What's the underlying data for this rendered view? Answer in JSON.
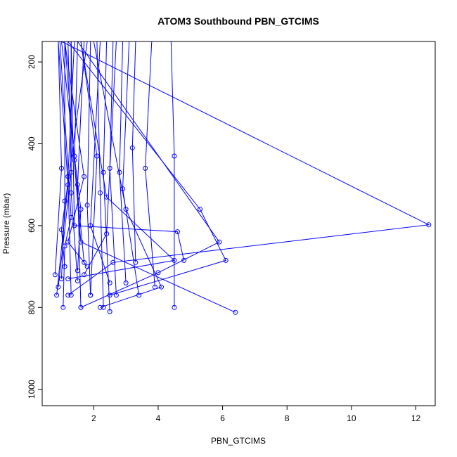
{
  "chart_data": {
    "type": "line",
    "title": "ATOM3 Southbound PBN_GTCIMS",
    "xlabel": "PBN_GTCIMS",
    "ylabel": "Pressure (mbar)",
    "xlim": [
      0.4,
      12.6
    ],
    "ylim": [
      1040,
      150
    ],
    "y_reversed": true,
    "x_ticks": [
      2,
      4,
      6,
      8,
      10,
      12
    ],
    "y_ticks": [
      200,
      400,
      600,
      800,
      1000
    ],
    "series_color": "#0000ff",
    "marker": "open-circle",
    "series": [
      {
        "x": [
          1.0,
          1.4,
          1.6,
          1.5
        ],
        "y": [
          150,
          430,
          560,
          710
        ]
      },
      {
        "x": [
          0.9,
          1.0,
          0.8
        ],
        "y": [
          150,
          460,
          720
        ]
      },
      {
        "x": [
          1.2,
          1.3,
          0.9
        ],
        "y": [
          150,
          470,
          750
        ]
      },
      {
        "x": [
          1.1,
          1.1,
          1.0
        ],
        "y": [
          150,
          540,
          730
        ]
      },
      {
        "x": [
          1.4,
          1.2,
          1.3
        ],
        "y": [
          150,
          480,
          770
        ]
      },
      {
        "x": [
          1.7,
          1.5,
          1.6
        ],
        "y": [
          150,
          500,
          800
        ]
      },
      {
        "x": [
          1.9,
          1.8,
          1.9
        ],
        "y": [
          150,
          550,
          770
        ]
      },
      {
        "x": [
          2.1,
          2.2,
          2.3
        ],
        "y": [
          150,
          520,
          800
        ]
      },
      {
        "x": [
          2.4,
          2.3,
          2.5
        ],
        "y": [
          150,
          470,
          810
        ]
      },
      {
        "x": [
          2.6,
          2.5,
          2.7
        ],
        "y": [
          150,
          460,
          770
        ]
      },
      {
        "x": [
          2.9,
          2.8,
          3.0
        ],
        "y": [
          150,
          470,
          740
        ]
      },
      {
        "x": [
          3.3,
          3.2,
          3.3
        ],
        "y": [
          150,
          410,
          690
        ]
      },
      {
        "x": [
          3.8,
          3.6,
          3.9
        ],
        "y": [
          150,
          460,
          750
        ]
      },
      {
        "x": [
          4.4,
          4.5,
          4.5
        ],
        "y": [
          150,
          430,
          800
        ]
      },
      {
        "x": [
          1.3,
          1.4,
          4.6,
          4.8
        ],
        "y": [
          150,
          600,
          615,
          685
        ]
      },
      {
        "x": [
          1.2,
          5.3,
          6.1,
          2.5
        ],
        "y": [
          150,
          560,
          685,
          770
        ]
      },
      {
        "x": [
          1.5,
          5.9,
          4.0,
          1.6
        ],
        "y": [
          150,
          640,
          715,
          800
        ]
      },
      {
        "x": [
          1.0,
          12.4,
          2.6,
          1.2
        ],
        "y": [
          150,
          598,
          690,
          770
        ]
      },
      {
        "x": [
          1.1,
          1.6,
          6.4
        ],
        "y": [
          150,
          640,
          812
        ]
      },
      {
        "x": [
          1.6,
          2.4,
          4.5,
          1.2
        ],
        "y": [
          150,
          530,
          685,
          730
        ]
      },
      {
        "x": [
          2.0,
          3.0,
          4.1,
          2.2
        ],
        "y": [
          150,
          560,
          750,
          800
        ]
      },
      {
        "x": [
          0.9,
          1.2,
          0.85
        ],
        "y": [
          150,
          500,
          770
        ]
      },
      {
        "x": [
          1.8,
          1.0,
          1.1
        ],
        "y": [
          150,
          610,
          700
        ]
      },
      {
        "x": [
          2.2,
          1.9,
          2.5
        ],
        "y": [
          150,
          600,
          740
        ]
      },
      {
        "x": [
          2.7,
          2.4,
          1.7
        ],
        "y": [
          150,
          620,
          720
        ]
      },
      {
        "x": [
          3.1,
          2.9,
          3.4
        ],
        "y": [
          150,
          510,
          770
        ]
      },
      {
        "x": [
          1.5,
          1.4,
          1.7
        ],
        "y": [
          150,
          440,
          690
        ]
      },
      {
        "x": [
          1.3,
          1.3,
          1.5
        ],
        "y": [
          150,
          520,
          735
        ]
      },
      {
        "x": [
          1.1,
          1.7,
          1.2,
          1.8
        ],
        "y": [
          150,
          480,
          640,
          700
        ]
      },
      {
        "x": [
          1.6,
          2.1,
          1.9
        ],
        "y": [
          150,
          430,
          770
        ]
      },
      {
        "x": [
          0.95,
          1.3,
          1.1,
          1.05
        ],
        "y": [
          150,
          580,
          650,
          800
        ]
      }
    ]
  }
}
